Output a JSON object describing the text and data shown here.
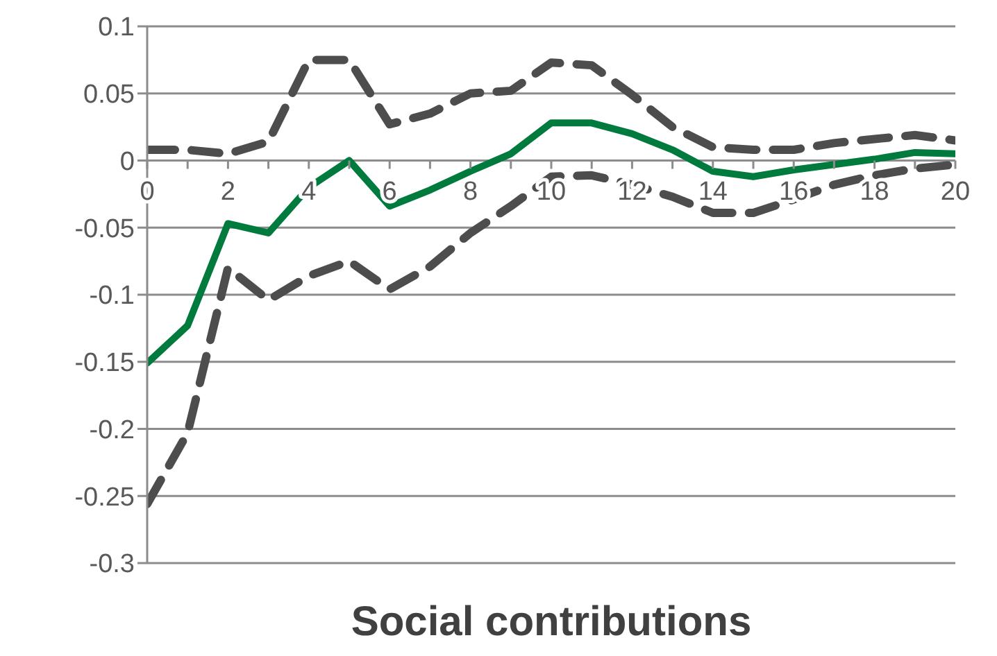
{
  "chart_data": {
    "type": "line",
    "title": "Social contributions",
    "x": [
      0,
      1,
      2,
      3,
      4,
      5,
      6,
      7,
      8,
      9,
      10,
      11,
      12,
      13,
      14,
      15,
      16,
      17,
      18,
      19,
      20
    ],
    "series": [
      {
        "color": "#007a3d",
        "line_style": "solid",
        "values": [
          -0.151,
          -0.123,
          -0.047,
          -0.054,
          -0.02,
          0.0,
          -0.034,
          -0.022,
          -0.008,
          0.005,
          0.028,
          0.028,
          0.02,
          0.008,
          -0.008,
          -0.012,
          -0.007,
          -0.003,
          0.001,
          0.006,
          0.005
        ]
      },
      {
        "color": "#4d4d4d",
        "line_style": "dashed",
        "values": [
          0.008,
          0.008,
          0.005,
          0.014,
          0.075,
          0.075,
          0.027,
          0.035,
          0.05,
          0.052,
          0.073,
          0.071,
          0.049,
          0.025,
          0.01,
          0.008,
          0.008,
          0.013,
          0.016,
          0.019,
          0.015
        ]
      },
      {
        "color": "#4d4d4d",
        "line_style": "dashed",
        "values": [
          -0.256,
          -0.203,
          -0.08,
          -0.104,
          -0.086,
          -0.075,
          -0.096,
          -0.079,
          -0.054,
          -0.034,
          -0.012,
          -0.011,
          -0.018,
          -0.027,
          -0.039,
          -0.039,
          -0.029,
          -0.018,
          -0.011,
          -0.006,
          -0.003
        ]
      }
    ],
    "xlim": [
      0,
      20
    ],
    "xticks": [
      0,
      {
        "value": 1,
        "label": null
      },
      2,
      {
        "value": 3,
        "label": null
      },
      4,
      {
        "value": 5,
        "label": null
      },
      6,
      {
        "value": 7,
        "label": null
      },
      8,
      {
        "value": 9,
        "label": null
      },
      10,
      {
        "value": 11,
        "label": null
      },
      12,
      {
        "value": 13,
        "label": null
      },
      14,
      {
        "value": 15,
        "label": null
      },
      16,
      {
        "value": 17,
        "label": null
      },
      18,
      {
        "value": 19,
        "label": null
      },
      20
    ],
    "ylim": [
      -0.3,
      0.1
    ],
    "yticks": [
      -0.3,
      -0.25,
      -0.2,
      -0.15,
      -0.1,
      -0.05,
      0,
      0.05,
      0.1
    ],
    "grid": "y",
    "marker": "none",
    "legend": false
  }
}
